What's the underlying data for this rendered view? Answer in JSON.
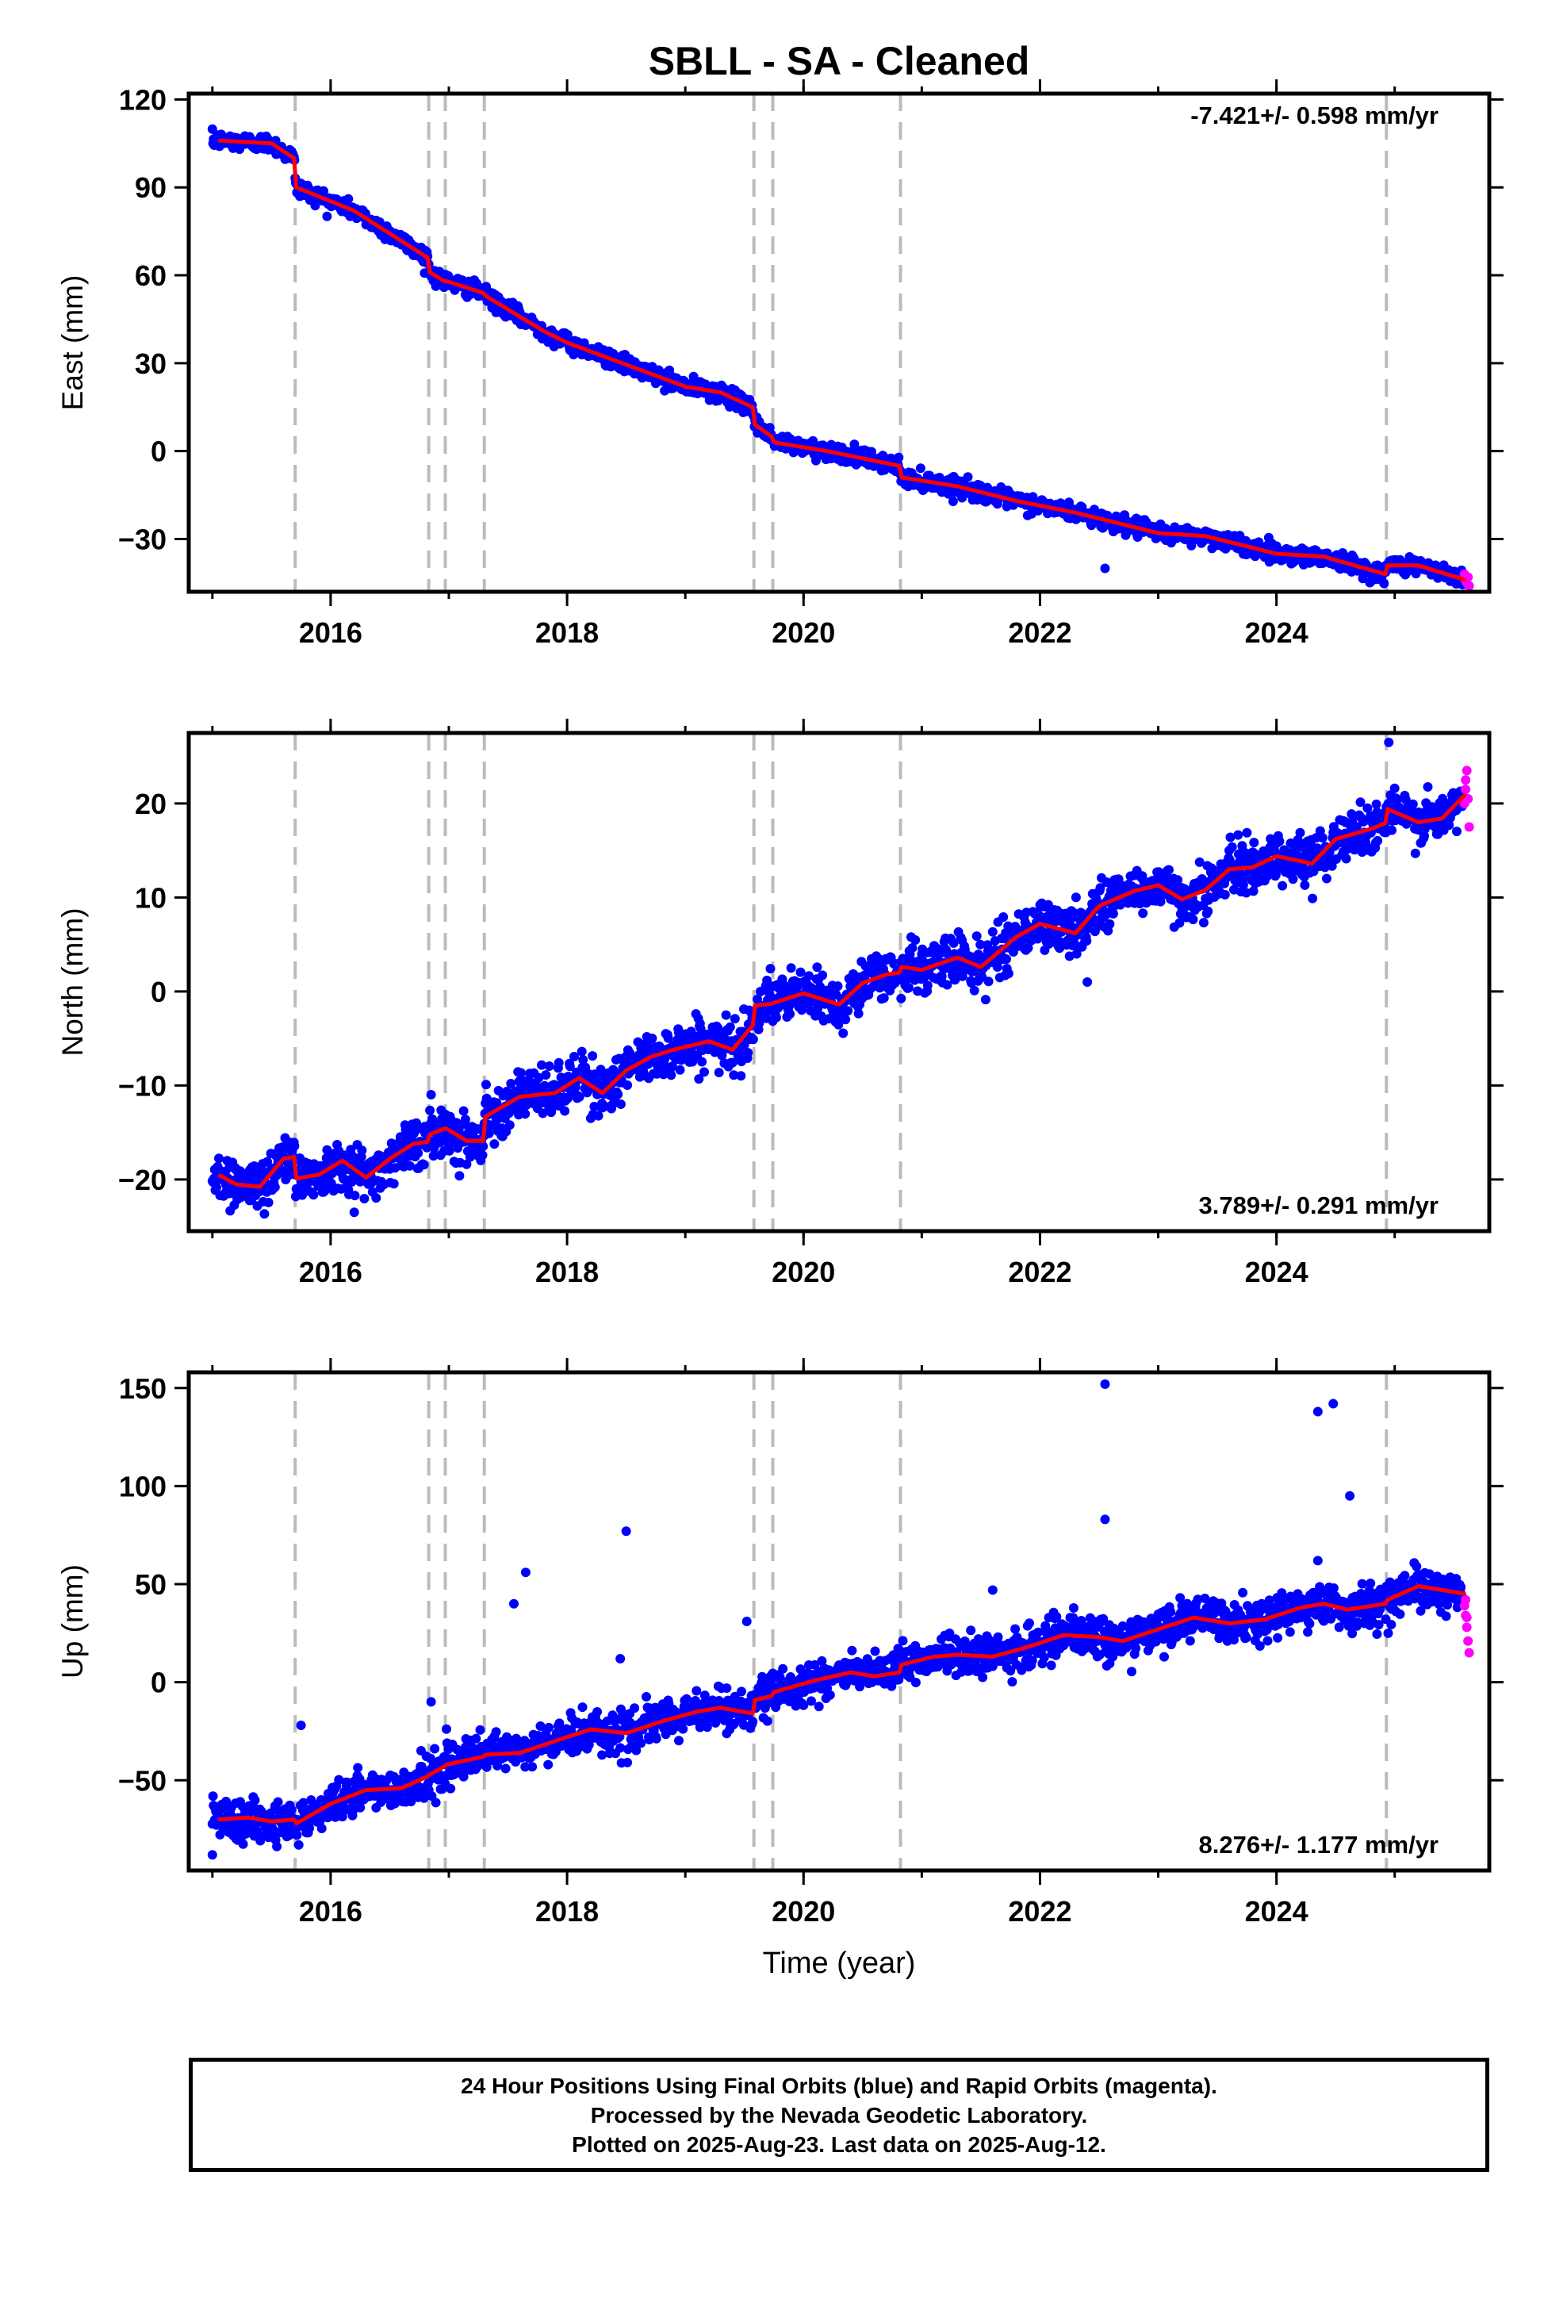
{
  "title": "SBLL  - SA - Cleaned",
  "xlabel": "Time (year)",
  "footer": {
    "line1": "24 Hour Positions Using Final Orbits (blue) and Rapid Orbits (magenta).",
    "line2": "Processed by the Nevada Geodetic Laboratory.",
    "line3": "Plotted on 2025-Aug-23. Last data on 2025-Aug-12."
  },
  "colors": {
    "final_orbits": "#0000ff",
    "rapid_orbits": "#ff00ff",
    "model": "#ff0000",
    "event_lines": "#bbbbbb",
    "frame": "#000000"
  },
  "chart_data": [
    {
      "type": "scatter",
      "ylabel": "East (mm)",
      "xlim": [
        2014.8,
        2025.8
      ],
      "ylim": [
        -48,
        122
      ],
      "xticks": [
        2016,
        2018,
        2020,
        2022,
        2024
      ],
      "xtick_labels": [
        "2016",
        "2018",
        "2020",
        "2022",
        "2024"
      ],
      "yticks": [
        -30,
        0,
        30,
        60,
        90,
        120
      ],
      "ytick_labels": [
        "−30",
        "0",
        "30",
        "60",
        "90",
        "120"
      ],
      "rate_text": "-7.421+/- 0.598 mm/yr",
      "rate_position": "top-right",
      "grid": false,
      "offset_lines": [
        2015.7,
        2016.83,
        2016.97,
        2017.3,
        2019.58,
        2019.74,
        2020.82,
        2024.93
      ],
      "series": [
        {
          "role": "model",
          "x": [
            2015.05,
            2015.5,
            2015.69,
            2015.71,
            2016.2,
            2016.82,
            2016.84,
            2016.96,
            2016.98,
            2017.29,
            2017.31,
            2017.8,
            2018.0,
            2018.6,
            2019.0,
            2019.3,
            2019.57,
            2019.59,
            2019.73,
            2019.75,
            2020.2,
            2020.81,
            2020.83,
            2021.3,
            2021.8,
            2022.3,
            2022.6,
            2023.0,
            2023.4,
            2023.8,
            2024.0,
            2024.4,
            2024.92,
            2024.94,
            2025.2,
            2025.6
          ],
          "y": [
            106,
            105,
            100,
            90,
            82,
            66,
            61,
            58,
            58,
            54,
            53,
            41,
            37,
            28,
            22,
            20,
            15,
            9,
            5,
            3,
            0,
            -5,
            -9,
            -12,
            -17,
            -21,
            -24,
            -28,
            -29,
            -33,
            -35,
            -36,
            -42,
            -39,
            -39,
            -44
          ]
        },
        {
          "role": "final_orbits",
          "x_start": 2015.0,
          "x_end": 2025.58,
          "noise_sd": 1.4,
          "outliers": [
            [
              2022.55,
              -40
            ]
          ]
        },
        {
          "role": "rapid_orbits",
          "x": [
            2025.59,
            2025.6,
            2025.61,
            2025.62,
            2025.63
          ],
          "y": [
            -42,
            -44,
            -45,
            -43,
            -46
          ]
        }
      ]
    },
    {
      "type": "scatter",
      "ylabel": "North (mm)",
      "xlim": [
        2014.8,
        2025.8
      ],
      "ylim": [
        -25.5,
        27.5
      ],
      "xticks": [
        2016,
        2018,
        2020,
        2022,
        2024
      ],
      "xtick_labels": [
        "2016",
        "2018",
        "2020",
        "2022",
        "2024"
      ],
      "yticks": [
        -20,
        -10,
        0,
        10,
        20
      ],
      "ytick_labels": [
        "−20",
        "−10",
        "0",
        "10",
        "20"
      ],
      "rate_text": "3.789+/- 0.291 mm/yr",
      "rate_position": "bottom-right",
      "grid": false,
      "offset_lines": [
        2015.7,
        2016.83,
        2016.97,
        2017.3,
        2019.58,
        2019.74,
        2020.82,
        2024.93
      ],
      "series": [
        {
          "role": "model",
          "x": [
            2015.05,
            2015.2,
            2015.4,
            2015.6,
            2015.69,
            2015.71,
            2015.9,
            2016.1,
            2016.3,
            2016.5,
            2016.7,
            2016.82,
            2016.84,
            2016.96,
            2016.98,
            2017.15,
            2017.29,
            2017.31,
            2017.6,
            2017.9,
            2018.1,
            2018.3,
            2018.5,
            2018.7,
            2018.9,
            2019.2,
            2019.4,
            2019.57,
            2019.59,
            2019.73,
            2019.75,
            2020.0,
            2020.3,
            2020.5,
            2020.7,
            2020.81,
            2020.83,
            2021.0,
            2021.3,
            2021.5,
            2021.8,
            2022.0,
            2022.3,
            2022.5,
            2022.8,
            2023.0,
            2023.2,
            2023.4,
            2023.6,
            2023.8,
            2024.0,
            2024.3,
            2024.5,
            2024.8,
            2024.92,
            2024.94,
            2025.2,
            2025.4,
            2025.6
          ],
          "y": [
            -19.5,
            -20.5,
            -20.8,
            -17.8,
            -17.6,
            -19.9,
            -19.5,
            -18.0,
            -19.8,
            -17.8,
            -16.2,
            -16.0,
            -15.2,
            -14.6,
            -14.6,
            -15.9,
            -15.9,
            -13.3,
            -11.2,
            -10.8,
            -9.2,
            -10.8,
            -8.4,
            -7.0,
            -6.2,
            -5.3,
            -6.2,
            -3.6,
            -1.5,
            -1.3,
            -1.2,
            -0.2,
            -1.4,
            0.9,
            1.8,
            2.0,
            2.6,
            2.3,
            3.6,
            2.6,
            5.8,
            7.2,
            6.2,
            9.1,
            10.7,
            11.3,
            9.8,
            10.8,
            13.0,
            13.2,
            14.4,
            13.6,
            16.2,
            17.3,
            17.9,
            19.4,
            18.0,
            18.4,
            21.0
          ]
        },
        {
          "role": "final_orbits",
          "x_start": 2015.0,
          "x_end": 2025.58,
          "noise_sd": 1.3,
          "outliers": [
            [
              2024.95,
              26.5
            ],
            [
              2016.2,
              -23.5
            ],
            [
              2018.2,
              -13.5
            ],
            [
              2022.4,
              1.0
            ]
          ]
        },
        {
          "role": "rapid_orbits",
          "x": [
            2025.59,
            2025.6,
            2025.61,
            2025.62,
            2025.63,
            2025.6
          ],
          "y": [
            20,
            21.5,
            23.5,
            20.5,
            17.5,
            22.5
          ]
        }
      ]
    },
    {
      "type": "scatter",
      "ylabel": "Up (mm)",
      "xlim": [
        2014.8,
        2025.8
      ],
      "ylim": [
        -96,
        158
      ],
      "xticks": [
        2016,
        2018,
        2020,
        2022,
        2024
      ],
      "xtick_labels": [
        "2016",
        "2018",
        "2020",
        "2022",
        "2024"
      ],
      "yticks": [
        -50,
        0,
        50,
        100,
        150
      ],
      "ytick_labels": [
        "−50",
        "0",
        "50",
        "100",
        "150"
      ],
      "rate_text": "8.276+/- 1.177 mm/yr",
      "rate_position": "bottom-right",
      "grid": false,
      "offset_lines": [
        2015.7,
        2016.83,
        2016.97,
        2017.3,
        2019.58,
        2019.74,
        2020.82,
        2024.93
      ],
      "series": [
        {
          "role": "model",
          "x": [
            2015.05,
            2015.3,
            2015.5,
            2015.69,
            2015.71,
            2016.0,
            2016.3,
            2016.6,
            2016.82,
            2016.84,
            2016.96,
            2016.98,
            2017.29,
            2017.31,
            2017.6,
            2017.9,
            2018.2,
            2018.5,
            2018.8,
            2019.1,
            2019.3,
            2019.57,
            2019.59,
            2019.73,
            2019.75,
            2020.1,
            2020.4,
            2020.6,
            2020.81,
            2020.83,
            2021.1,
            2021.3,
            2021.6,
            2021.9,
            2022.2,
            2022.5,
            2022.7,
            2023.0,
            2023.3,
            2023.6,
            2023.9,
            2024.2,
            2024.4,
            2024.6,
            2024.92,
            2024.94,
            2025.2,
            2025.6
          ],
          "y": [
            -70,
            -69,
            -71,
            -70,
            -72,
            -62,
            -55,
            -54,
            -48,
            -47,
            -43,
            -42,
            -38,
            -37,
            -36,
            -30,
            -24,
            -26,
            -20,
            -15,
            -13,
            -16,
            -9,
            -7,
            -5,
            1,
            5,
            3,
            5,
            9,
            13,
            14,
            13,
            18,
            24,
            23,
            21,
            27,
            33,
            30,
            32,
            38,
            40,
            37,
            40,
            42,
            49,
            45
          ]
        },
        {
          "role": "final_orbits",
          "x_start": 2015.0,
          "x_end": 2025.58,
          "noise_sd": 5,
          "outliers": [
            [
              2015.75,
              -22
            ],
            [
              2016.85,
              -10
            ],
            [
              2017.55,
              40
            ],
            [
              2017.65,
              56
            ],
            [
              2018.45,
              12
            ],
            [
              2018.5,
              77
            ],
            [
              2019.35,
              -3
            ],
            [
              2019.52,
              31
            ],
            [
              2022.55,
              152
            ],
            [
              2022.55,
              83
            ],
            [
              2021.6,
              47
            ],
            [
              2024.35,
              138
            ],
            [
              2024.48,
              142
            ],
            [
              2024.62,
              95
            ],
            [
              2024.35,
              62
            ],
            [
              2015.0,
              -88
            ]
          ]
        },
        {
          "role": "rapid_orbits",
          "x": [
            2025.59,
            2025.6,
            2025.61,
            2025.62,
            2025.63,
            2025.6,
            2025.61
          ],
          "y": [
            39,
            34,
            28,
            21,
            15,
            42,
            33
          ]
        }
      ]
    }
  ]
}
